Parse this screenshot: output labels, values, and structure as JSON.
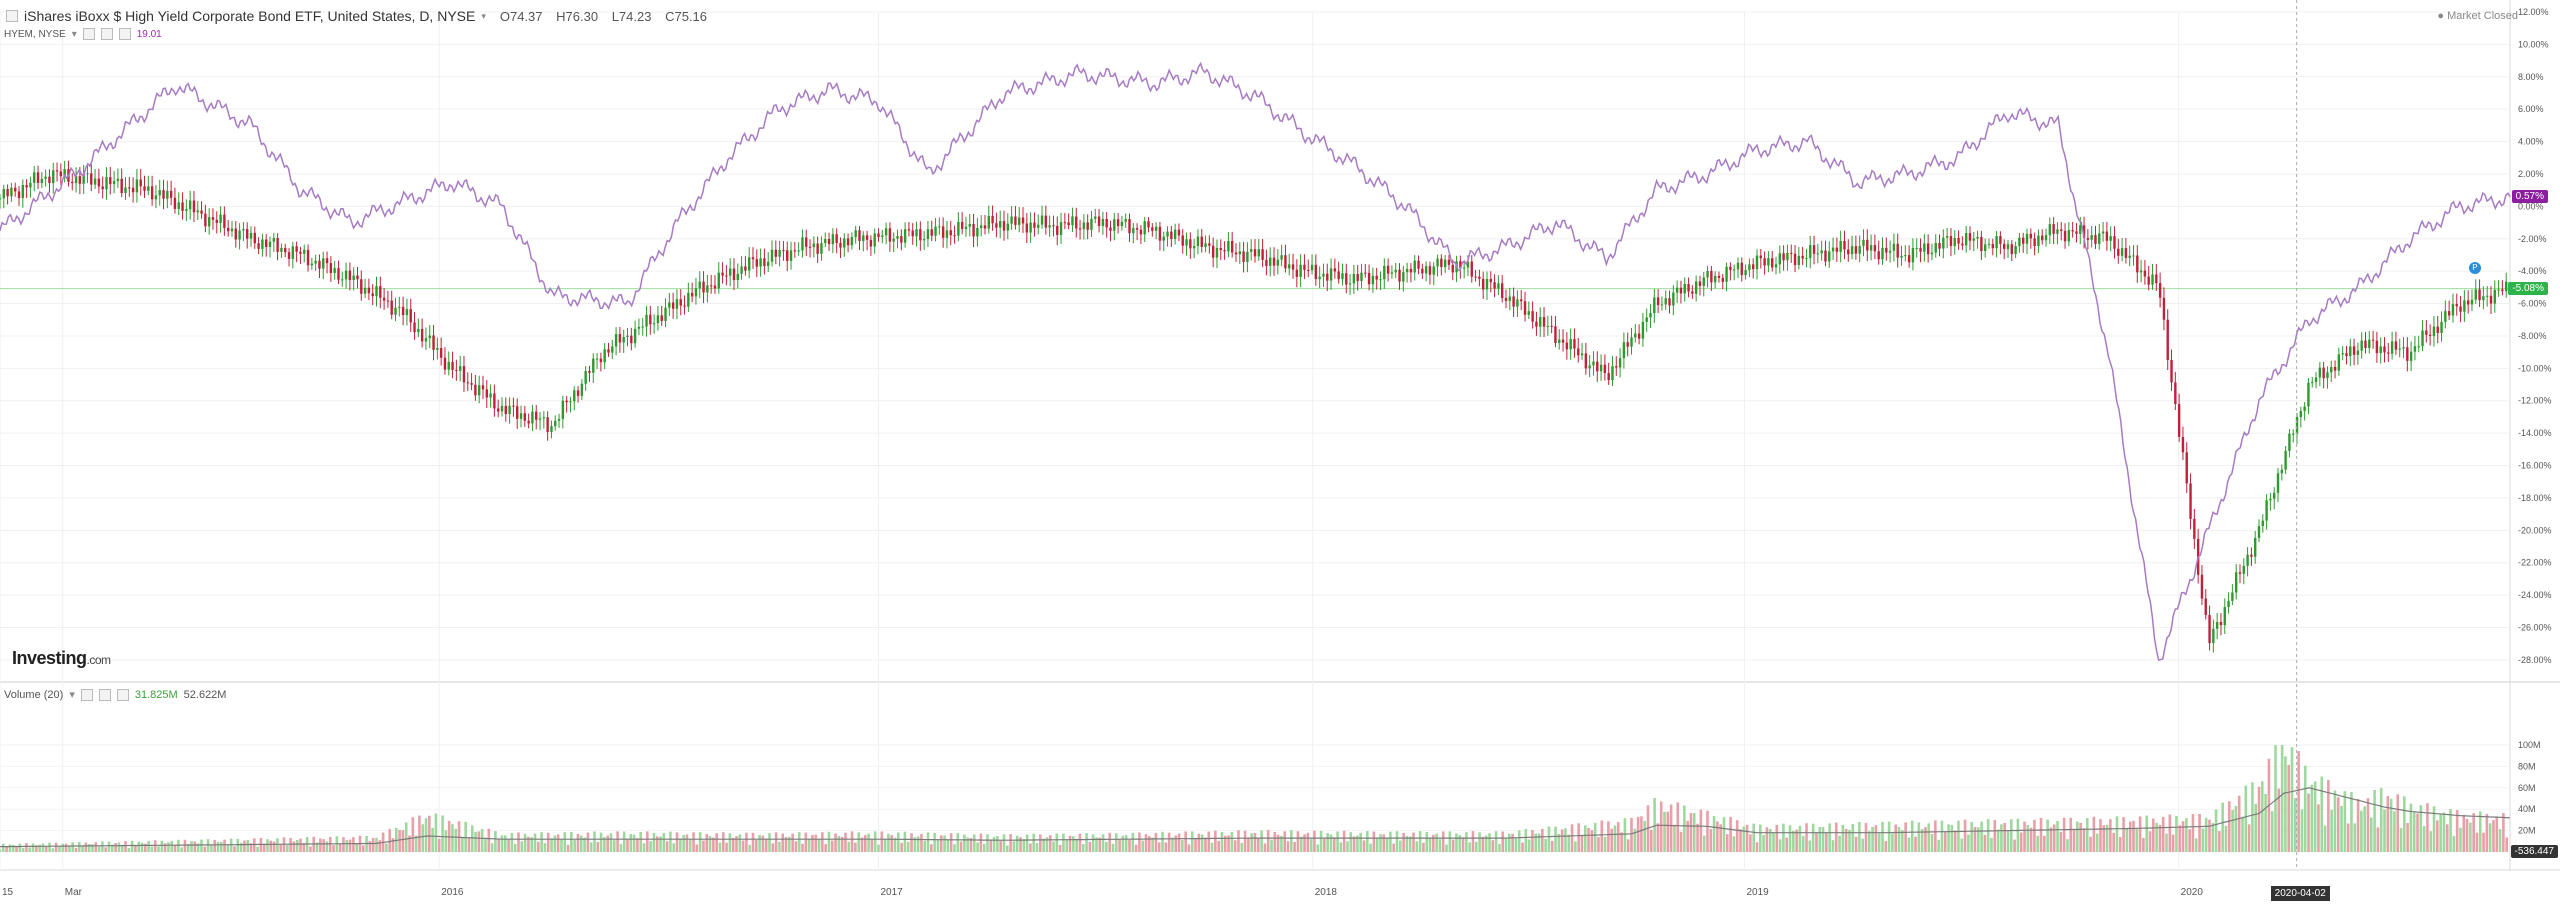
{
  "header": {
    "title": "iShares iBoxx $ High Yield Corporate Bond ETF, United States, D, NYSE",
    "open": "O74.37",
    "high": "H76.30",
    "low": "L74.23",
    "close": "C75.16",
    "market_status": "Market Closed",
    "compare_symbol": "HYEM, NYSE",
    "compare_value": "19.01"
  },
  "volume_header": {
    "label": "Volume (20)",
    "volume": "31.825M",
    "ma": "52.622M"
  },
  "logo": {
    "text": "Investing",
    "suffix": ".com"
  },
  "tags": {
    "purple_value": "0.57%",
    "green_value": "-5.08%",
    "volume_value": "-536.447",
    "crosshair_date": "2020-04-02"
  },
  "colors": {
    "up": "#2e9a2e",
    "down": "#c0203a",
    "purple": "#a77bc4",
    "volume_up": "#9fd89f",
    "volume_down": "#e8a0a8",
    "hline": "#9be19b"
  },
  "chart_data": {
    "type": "line",
    "title": "iShares iBoxx $ High Yield Corporate Bond ETF, United States, D, NYSE",
    "x_labels": [
      "15",
      "Mar",
      "2016",
      "2017",
      "2018",
      "2019",
      "2020"
    ],
    "y_ticks": [
      "12.00%",
      "10.00%",
      "8.00%",
      "6.00%",
      "4.00%",
      "2.00%",
      "0.00%",
      "-2.00%",
      "-4.00%",
      "-6.00%",
      "-8.00%",
      "-10.00%",
      "-12.00%",
      "-14.00%",
      "-16.00%",
      "-18.00%",
      "-20.00%",
      "-22.00%",
      "-24.00%",
      "-26.00%",
      "-28.00%"
    ],
    "ylim": [
      -28.5,
      12
    ],
    "reference_line": -5.08,
    "series": [
      {
        "name": "HYEM, NYSE",
        "style": "line",
        "x": [
          0,
          3,
          7,
          10,
          12,
          14,
          18,
          20,
          22,
          25,
          27,
          29,
          31,
          33,
          35,
          37,
          40,
          43,
          46,
          48,
          50,
          52,
          54,
          56,
          58,
          60,
          62,
          64,
          66,
          68,
          70,
          72,
          74,
          76,
          78,
          80,
          82,
          84,
          86,
          88,
          90,
          92,
          94,
          96,
          98,
          100
        ],
        "values": [
          -1.5,
          2.0,
          7.5,
          5.0,
          1.0,
          -1.0,
          1.5,
          0.0,
          -5.5,
          -6.0,
          -1.0,
          3.0,
          6.0,
          7.2,
          6.5,
          2.0,
          7.0,
          8.2,
          7.6,
          8.3,
          6.8,
          4.5,
          2.5,
          0.0,
          -3.5,
          -2.5,
          -1.0,
          -3.2,
          1.0,
          2.0,
          3.5,
          4.0,
          1.5,
          2.0,
          3.0,
          5.8,
          5.0,
          -9.0,
          -28.0,
          -20.0,
          -12.0,
          -7.0,
          -5.0,
          -2.0,
          0.0,
          0.57
        ]
      },
      {
        "name": "iShares iBoxx $ High Yield Corporate Bond ETF",
        "style": "candlestick",
        "x": [
          0,
          2,
          4,
          6,
          8,
          10,
          12,
          14,
          16,
          18,
          20,
          22,
          24,
          26,
          28,
          30,
          32,
          34,
          36,
          38,
          40,
          42,
          44,
          46,
          48,
          50,
          52,
          54,
          56,
          58,
          60,
          62,
          64,
          66,
          68,
          70,
          72,
          74,
          76,
          78,
          80,
          82,
          84,
          86,
          88,
          90,
          92,
          94,
          96,
          98,
          100
        ],
        "values": [
          0.5,
          2.0,
          1.5,
          1.0,
          -0.5,
          -2.0,
          -3.0,
          -4.5,
          -6.5,
          -10.0,
          -12.5,
          -13.5,
          -9.0,
          -7.0,
          -5.0,
          -3.5,
          -2.5,
          -2.0,
          -1.8,
          -1.5,
          -1.0,
          -1.2,
          -1.0,
          -1.5,
          -2.5,
          -3.0,
          -4.0,
          -4.5,
          -4.0,
          -3.5,
          -5.5,
          -8.0,
          -10.5,
          -6.0,
          -4.5,
          -3.5,
          -3.0,
          -2.5,
          -3.0,
          -2.0,
          -2.5,
          -1.5,
          -2.0,
          -5.0,
          -27.0,
          -20.0,
          -11.0,
          -8.5,
          -9.0,
          -6.0,
          -5.08
        ]
      }
    ],
    "volume": {
      "title": "Volume (20)",
      "ticks": [
        "100M",
        "80M",
        "60M",
        "40M",
        "20M"
      ],
      "ylim": [
        0,
        100
      ],
      "x": [
        0,
        5,
        10,
        15,
        17,
        20,
        25,
        30,
        35,
        40,
        45,
        50,
        55,
        60,
        65,
        66,
        68,
        70,
        75,
        80,
        85,
        88,
        90,
        91,
        92,
        94,
        95,
        96,
        98,
        100
      ],
      "values": [
        6,
        8,
        10,
        12,
        30,
        14,
        15,
        14,
        15,
        13,
        14,
        16,
        15,
        15,
        25,
        40,
        30,
        20,
        22,
        24,
        26,
        28,
        55,
        90,
        60,
        40,
        48,
        38,
        30,
        28
      ],
      "ma": [
        5,
        6,
        7,
        8,
        15,
        12,
        12,
        12,
        12,
        11,
        12,
        13,
        13,
        13,
        17,
        25,
        24,
        18,
        18,
        20,
        22,
        24,
        36,
        55,
        60,
        48,
        42,
        38,
        34,
        32
      ]
    }
  }
}
